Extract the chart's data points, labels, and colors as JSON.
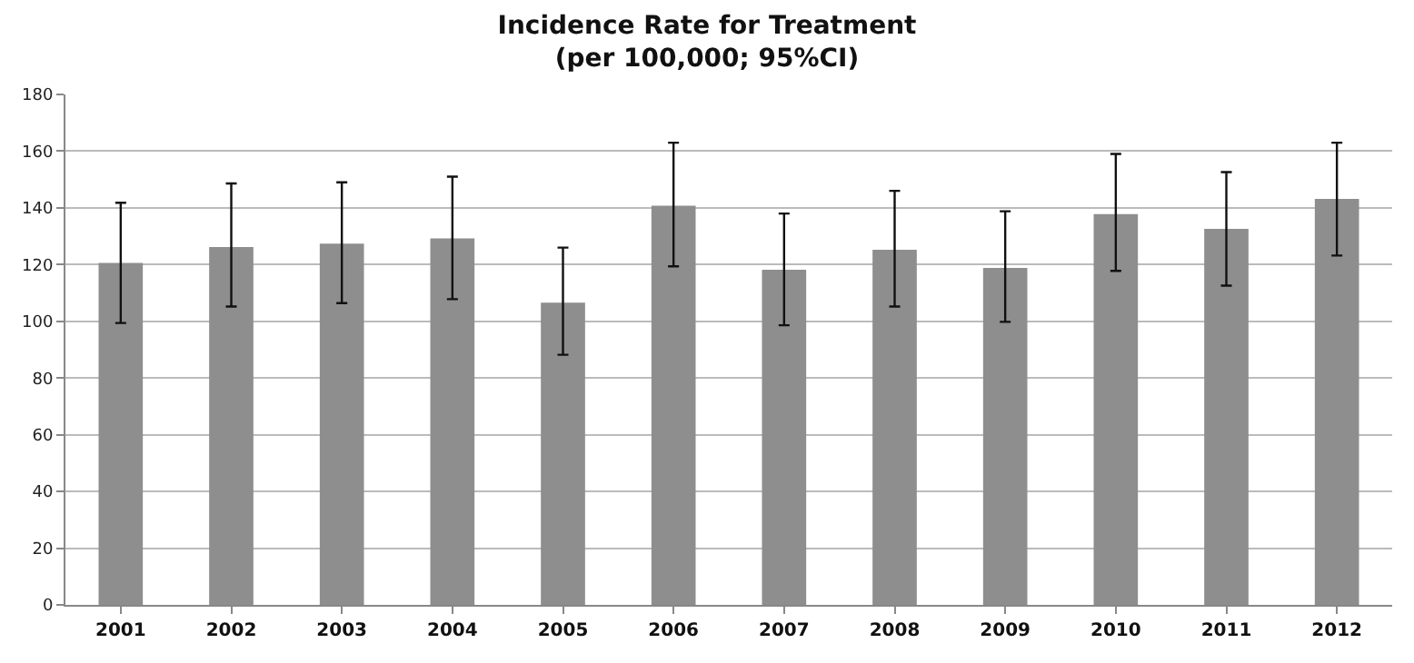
{
  "chart_data": {
    "type": "bar",
    "title": "Incidence Rate for Treatment\n(per 100,000; 95%CI)",
    "categories": [
      "2001",
      "2002",
      "2003",
      "2004",
      "2005",
      "2006",
      "2007",
      "2008",
      "2009",
      "2010",
      "2011",
      "2012"
    ],
    "values": [
      120.6,
      126.2,
      127.4,
      129.2,
      106.6,
      140.8,
      118.2,
      125.2,
      118.8,
      137.8,
      132.6,
      143.2
    ],
    "errors": [
      [
        99.4,
        141.8
      ],
      [
        105.2,
        148.6
      ],
      [
        106.4,
        149
      ],
      [
        107.8,
        151
      ],
      [
        88.2,
        126
      ],
      [
        119.4,
        163
      ],
      [
        98.6,
        138
      ],
      [
        105.2,
        146
      ],
      [
        99.8,
        138.8
      ],
      [
        117.8,
        159
      ],
      [
        112.6,
        152.6
      ],
      [
        123.2,
        163
      ]
    ],
    "color": "#8e8e8e",
    "ylim": [
      0,
      180
    ],
    "yticks": [
      0,
      20,
      40,
      60,
      80,
      100,
      120,
      140,
      160,
      180
    ],
    "grid": "y",
    "legend": false
  }
}
